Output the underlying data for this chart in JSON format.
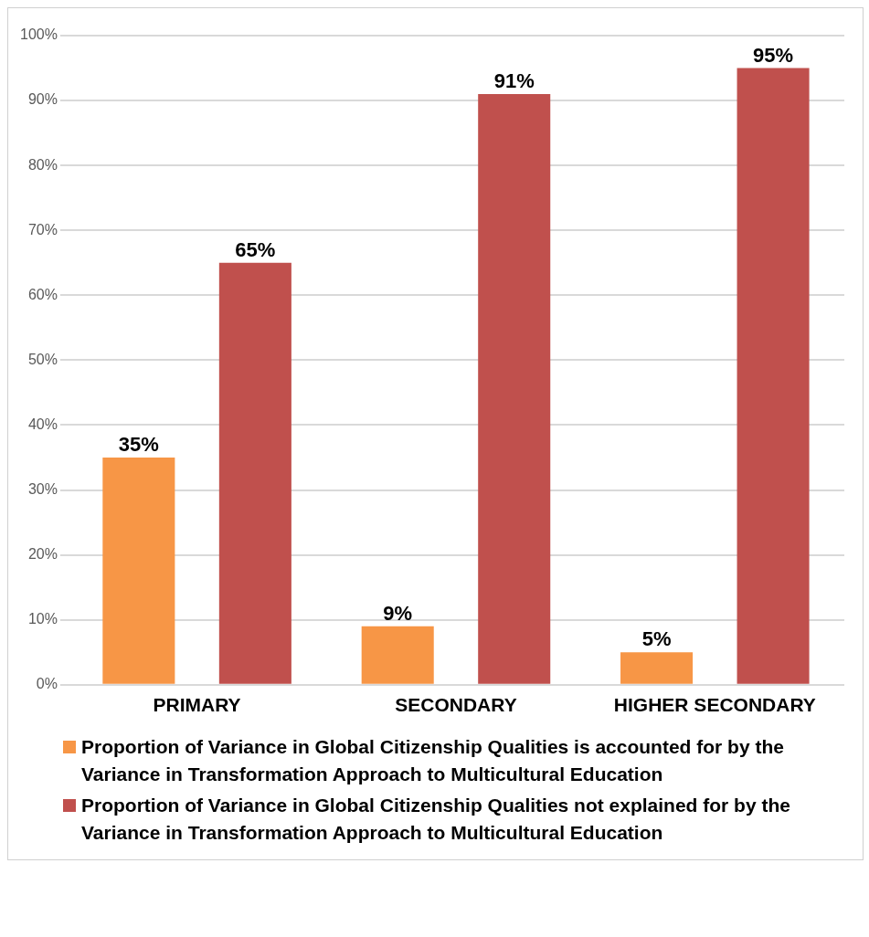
{
  "chart_data": {
    "type": "bar",
    "categories": [
      "PRIMARY",
      "SECONDARY",
      "HIGHER SECONDARY"
    ],
    "series": [
      {
        "name": "Proportion of Variance in Global Citizenship Qualities is accounted for by the Variance in Transformation Approach to Multicultural Education",
        "color": "#f79646",
        "values": [
          35,
          9,
          5
        ]
      },
      {
        "name": "Proportion of Variance in Global Citizenship Qualities not explained for by the Variance in Transformation Approach to Multicultural Education",
        "color": "#c0504d",
        "values": [
          65,
          91,
          95
        ]
      }
    ],
    "ylim": [
      0,
      100
    ],
    "yticks": [
      {
        "value": 0,
        "label": "0%"
      },
      {
        "value": 10,
        "label": "10%"
      },
      {
        "value": 20,
        "label": "20%"
      },
      {
        "value": 30,
        "label": "30%"
      },
      {
        "value": 40,
        "label": "40%"
      },
      {
        "value": 50,
        "label": "50%"
      },
      {
        "value": 60,
        "label": "60%"
      },
      {
        "value": 70,
        "label": "70%"
      },
      {
        "value": 80,
        "label": "80%"
      },
      {
        "value": 90,
        "label": "90%"
      },
      {
        "value": 100,
        "label": "100%"
      }
    ],
    "value_labels": [
      [
        "35%",
        "9%",
        "5%"
      ],
      [
        "65%",
        "91%",
        "95%"
      ]
    ],
    "grid": "y",
    "legend": "bottom"
  }
}
